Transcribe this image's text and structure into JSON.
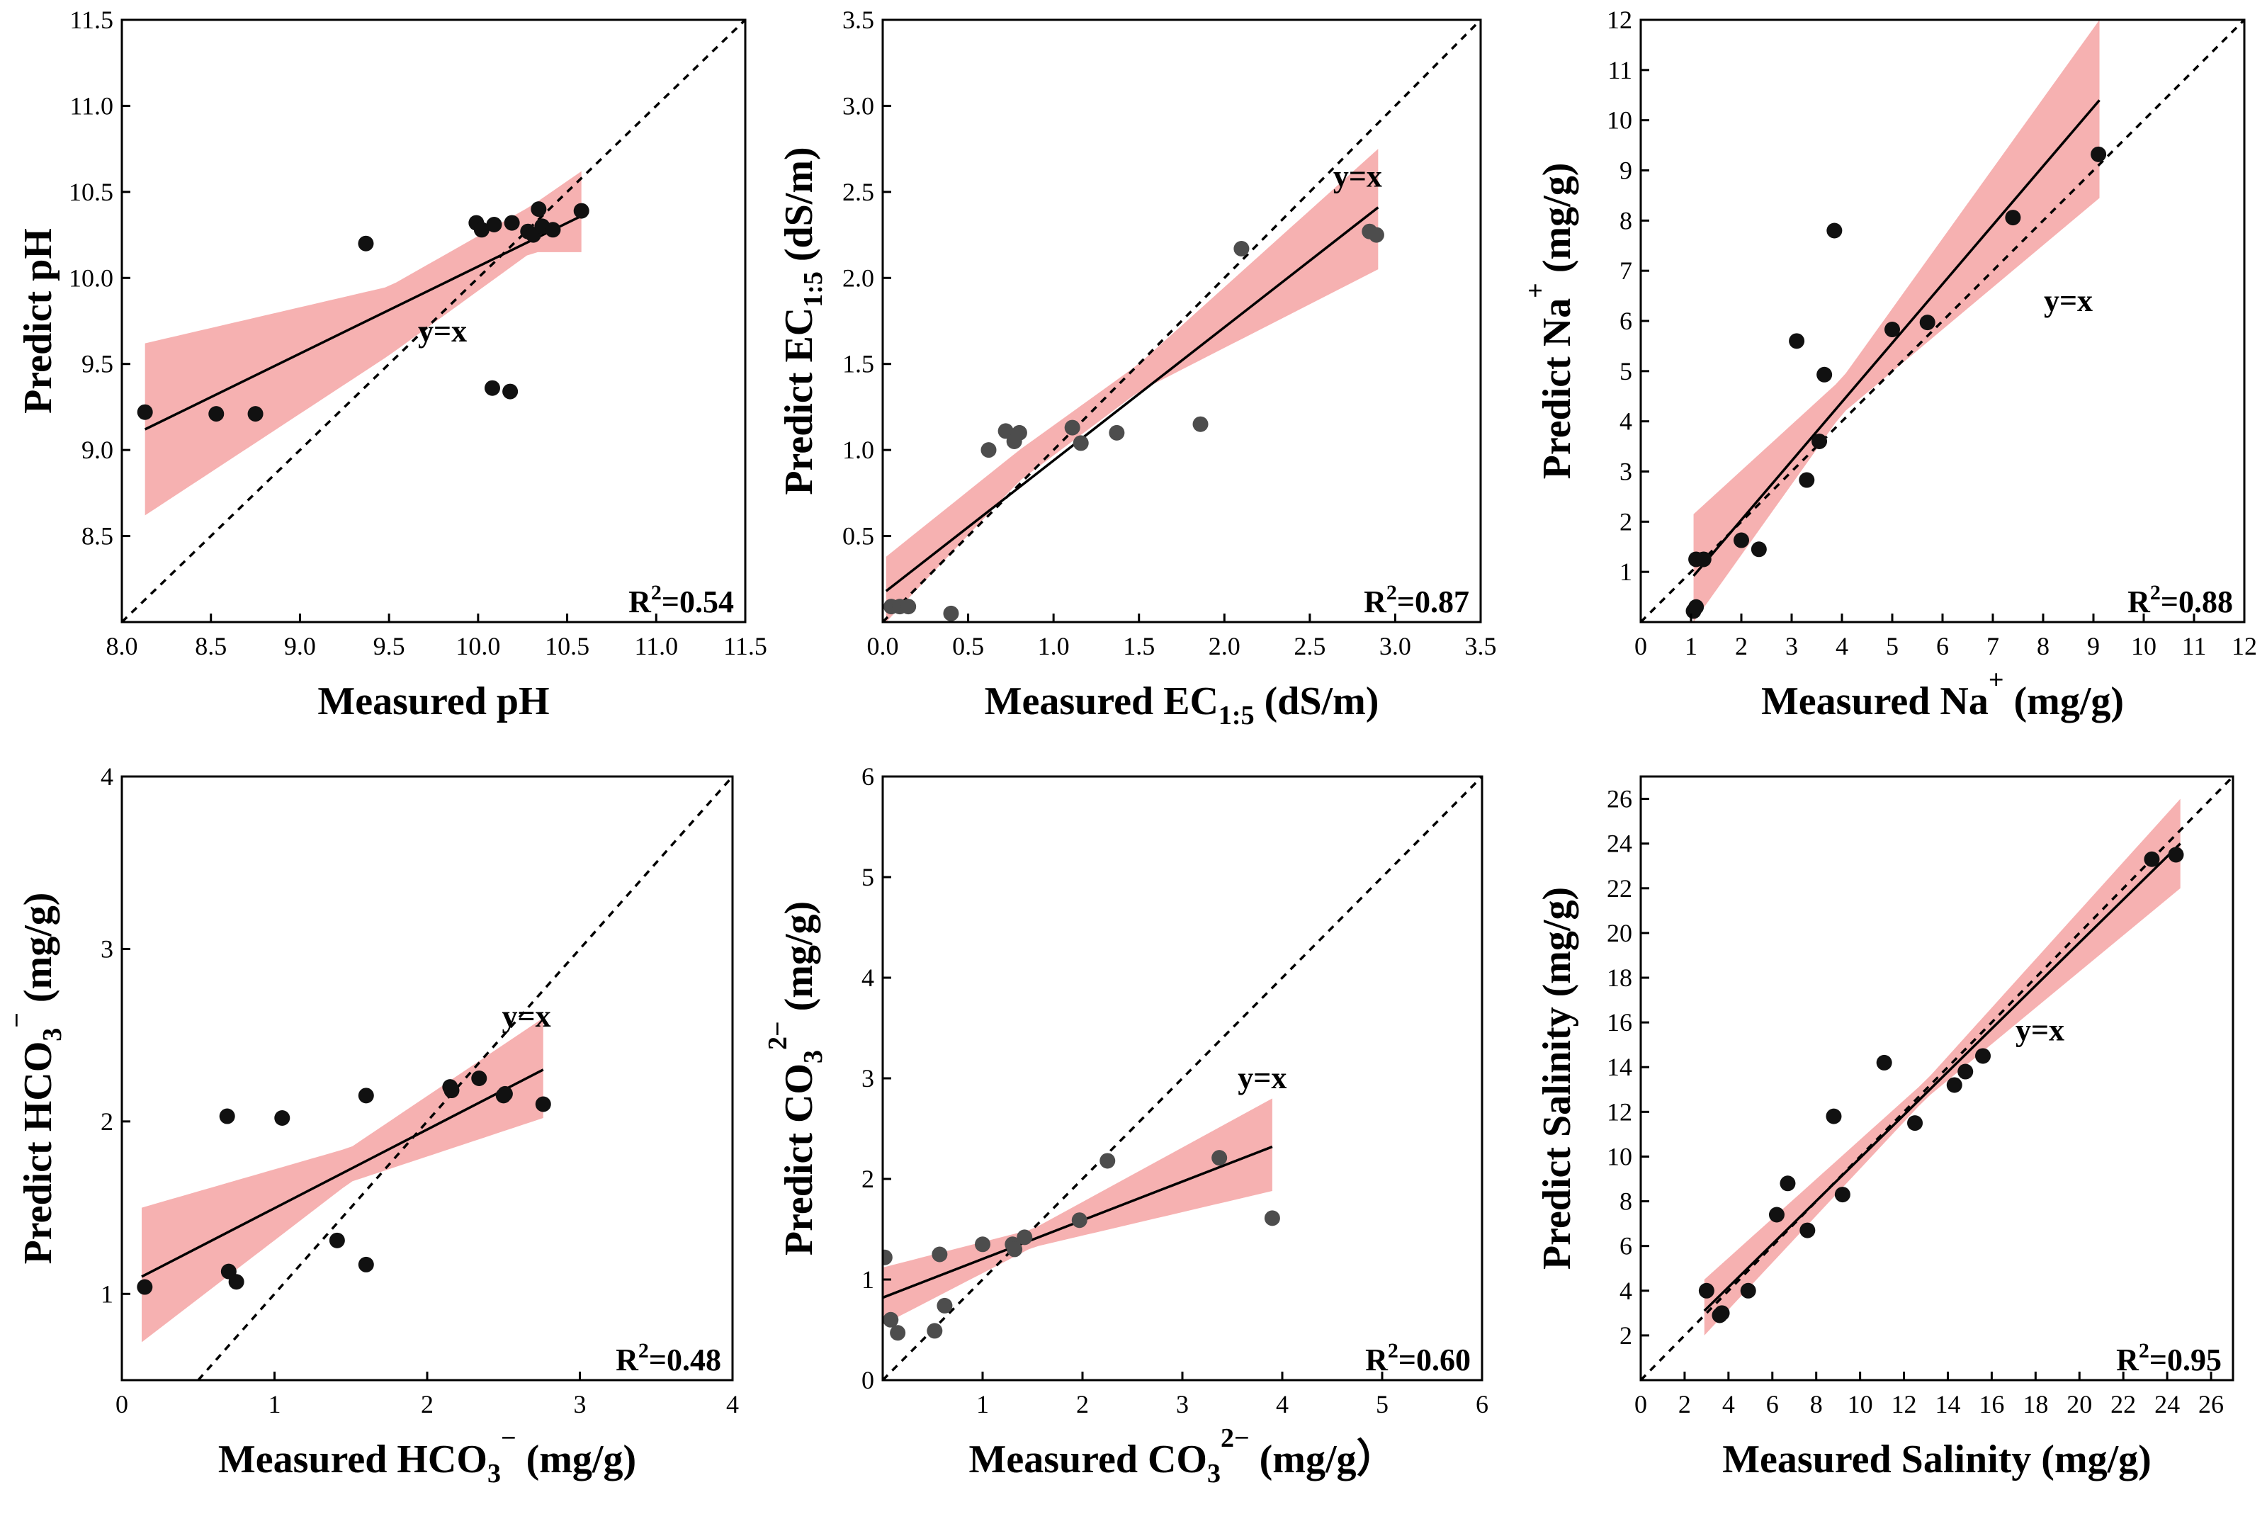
{
  "chart_data": [
    {
      "id": "ph",
      "type": "scatter",
      "xlabel": {
        "pre": "Measured pH"
      },
      "ylabel": {
        "pre": "Predict pH"
      },
      "xlim": [
        8.0,
        11.5
      ],
      "ylim": [
        8.0,
        11.5
      ],
      "xticks": [
        8.0,
        8.5,
        9.0,
        9.5,
        10.0,
        10.5,
        11.0,
        11.5
      ],
      "xtick_labels": [
        "8.0",
        "8.5",
        "9.0",
        "9.5",
        "10.0",
        "10.5",
        "11.0",
        "11.5"
      ],
      "yticks": [
        8.5,
        9.0,
        9.5,
        10.0,
        10.5,
        11.0,
        11.5
      ],
      "ytick_labels": [
        "8.5",
        "9.0",
        "9.5",
        "10.0",
        "10.5",
        "11.0",
        "11.5"
      ],
      "point_color": "#111111",
      "points": [
        [
          8.13,
          9.22
        ],
        [
          8.53,
          9.21
        ],
        [
          8.75,
          9.21
        ],
        [
          9.37,
          10.2
        ],
        [
          9.99,
          10.32
        ],
        [
          10.02,
          10.28
        ],
        [
          10.09,
          10.31
        ],
        [
          10.19,
          10.32
        ],
        [
          10.28,
          10.27
        ],
        [
          10.31,
          10.25
        ],
        [
          10.34,
          10.4
        ],
        [
          10.36,
          10.3
        ],
        [
          10.42,
          10.28
        ],
        [
          10.58,
          10.39
        ],
        [
          10.08,
          9.36
        ],
        [
          10.18,
          9.34
        ]
      ],
      "fit_line": {
        "x": [
          8.13,
          10.58
        ],
        "y": [
          9.12,
          10.36
        ]
      },
      "confidence_band": {
        "x": [
          8.13,
          9.5,
          10.3,
          10.58
        ],
        "lower": [
          8.62,
          9.55,
          10.15,
          10.15
        ],
        "upper": [
          9.62,
          9.95,
          10.42,
          10.62
        ]
      },
      "identity_label": "y=x",
      "identity_label_at": [
        9.8,
        9.63
      ],
      "r2_label": {
        "pre": "R",
        "sup": "2",
        "post": "=0.54"
      }
    },
    {
      "id": "ec",
      "type": "scatter",
      "xlabel": {
        "pre": "Measured EC",
        "sub": "1:5",
        "post": " (dS/m)"
      },
      "ylabel": {
        "pre": "Predict EC",
        "sub": "1:5",
        "post": " (dS/m)"
      },
      "xlim": [
        0,
        3.5
      ],
      "ylim": [
        0,
        3.5
      ],
      "xticks": [
        0,
        0.5,
        1.0,
        1.5,
        2.0,
        2.5,
        3.0,
        3.5
      ],
      "xtick_labels": [
        "0.0",
        "0.5",
        "1.0",
        "1.5",
        "2.0",
        "2.5",
        "3.0",
        "3.5"
      ],
      "yticks": [
        0.5,
        1.0,
        1.5,
        2.0,
        2.5,
        3.0,
        3.5
      ],
      "ytick_labels": [
        "0.5",
        "1.0",
        "1.5",
        "2.0",
        "2.5",
        "3.0",
        "3.5"
      ],
      "point_color": "#4d4d4d",
      "points": [
        [
          0.05,
          0.09
        ],
        [
          0.1,
          0.09
        ],
        [
          0.15,
          0.09
        ],
        [
          0.4,
          0.05
        ],
        [
          0.62,
          1.0
        ],
        [
          0.72,
          1.11
        ],
        [
          0.77,
          1.05
        ],
        [
          0.8,
          1.1
        ],
        [
          1.11,
          1.13
        ],
        [
          1.16,
          1.04
        ],
        [
          1.37,
          1.1
        ],
        [
          1.86,
          1.15
        ],
        [
          2.1,
          2.17
        ],
        [
          2.85,
          2.27
        ],
        [
          2.89,
          2.25
        ]
      ],
      "fit_line": {
        "x": [
          0.02,
          2.9
        ],
        "y": [
          0.18,
          2.41
        ]
      },
      "confidence_band": {
        "x": [
          0.02,
          0.8,
          1.5,
          2.9
        ],
        "lower": [
          0.0,
          0.82,
          1.34,
          2.05
        ],
        "upper": [
          0.38,
          1.0,
          1.5,
          2.75
        ]
      },
      "identity_label": "y=x",
      "identity_label_at": [
        2.78,
        2.53
      ],
      "r2_label": {
        "pre": "R",
        "sup": "2",
        "post": "=0.87"
      }
    },
    {
      "id": "na",
      "type": "scatter",
      "xlabel": {
        "pre": "Measured Na",
        "sup": "+",
        "post": " (mg/g)"
      },
      "ylabel": {
        "pre": "Predict Na",
        "sup": "+",
        "post": " (mg/g)"
      },
      "xlim": [
        0,
        12
      ],
      "ylim": [
        0,
        12
      ],
      "xticks": [
        0,
        1,
        2,
        3,
        4,
        5,
        6,
        7,
        8,
        9,
        10,
        11,
        12
      ],
      "xtick_labels": [
        "0",
        "1",
        "2",
        "3",
        "4",
        "5",
        "6",
        "7",
        "8",
        "9",
        "10",
        "11",
        "12"
      ],
      "yticks": [
        1,
        2,
        3,
        4,
        5,
        6,
        7,
        8,
        9,
        10,
        11,
        12
      ],
      "ytick_labels": [
        "1",
        "2",
        "3",
        "4",
        "5",
        "6",
        "7",
        "8",
        "9",
        "10",
        "11",
        "12"
      ],
      "point_color": "#111111",
      "points": [
        [
          1.05,
          0.22
        ],
        [
          1.1,
          0.3
        ],
        [
          1.1,
          1.25
        ],
        [
          1.25,
          1.25
        ],
        [
          2.0,
          1.63
        ],
        [
          2.35,
          1.45
        ],
        [
          3.1,
          5.6
        ],
        [
          3.3,
          2.83
        ],
        [
          3.55,
          3.6
        ],
        [
          3.65,
          4.93
        ],
        [
          3.85,
          7.8
        ],
        [
          5.0,
          5.83
        ],
        [
          5.7,
          5.97
        ],
        [
          7.4,
          8.06
        ],
        [
          9.1,
          9.32
        ]
      ],
      "fit_line": {
        "x": [
          1.05,
          9.12
        ],
        "y": [
          0.92,
          10.4
        ]
      },
      "confidence_band": {
        "x": [
          1.05,
          4.0,
          9.12
        ],
        "lower": [
          0.0,
          4.15,
          8.45
        ],
        "upper": [
          2.15,
          4.85,
          12.0
        ]
      },
      "identity_label": "y=x",
      "identity_label_at": [
        8.5,
        6.2
      ],
      "r2_label": {
        "pre": "R",
        "sup": "2",
        "post": "=0.88"
      }
    },
    {
      "id": "hco3",
      "type": "scatter",
      "xlabel": {
        "pre": "Measured HCO",
        "sub": "3",
        "sup": "−",
        "post": " (mg/g)"
      },
      "ylabel": {
        "pre": "Predict HCO",
        "sub": "3",
        "sup": "−",
        "post": "  (mg/g)"
      },
      "xlim": [
        0,
        4
      ],
      "ylim": [
        0.5,
        4
      ],
      "xticks": [
        0,
        1,
        2,
        3,
        4
      ],
      "xtick_labels": [
        "0",
        "1",
        "2",
        "3",
        "4"
      ],
      "yticks": [
        1,
        2,
        3,
        4
      ],
      "ytick_labels": [
        "1",
        "2",
        "3",
        "4"
      ],
      "point_color": "#111111",
      "points": [
        [
          0.15,
          1.04
        ],
        [
          0.69,
          2.03
        ],
        [
          0.7,
          1.13
        ],
        [
          0.75,
          1.07
        ],
        [
          1.05,
          2.02
        ],
        [
          1.41,
          1.31
        ],
        [
          1.6,
          1.17
        ],
        [
          1.6,
          2.15
        ],
        [
          2.15,
          2.2
        ],
        [
          2.16,
          2.18
        ],
        [
          2.34,
          2.25
        ],
        [
          2.5,
          2.15
        ],
        [
          2.51,
          2.16
        ],
        [
          2.76,
          2.1
        ]
      ],
      "fit_line": {
        "x": [
          0.13,
          2.76
        ],
        "y": [
          1.1,
          2.3
        ]
      },
      "confidence_band": {
        "x": [
          0.13,
          1.5,
          2.76
        ],
        "lower": [
          0.72,
          1.65,
          2.02
        ],
        "upper": [
          1.5,
          1.85,
          2.6
        ]
      },
      "identity_label": "y=x",
      "identity_label_at": [
        2.65,
        2.55
      ],
      "r2_label": {
        "pre": "R",
        "sup": "2",
        "post": "=0.48"
      }
    },
    {
      "id": "co3",
      "type": "scatter",
      "xlabel": {
        "pre": "Measured CO",
        "sub": "3",
        "sup": "2−",
        "post": " (mg/g）"
      },
      "ylabel": {
        "pre": "Predict CO",
        "sub": "3",
        "sup": "2−",
        "post": "  (mg/g)"
      },
      "xlim": [
        0,
        6
      ],
      "ylim": [
        0,
        6
      ],
      "xticks": [
        1,
        2,
        3,
        4,
        5,
        6
      ],
      "xtick_labels": [
        "1",
        "2",
        "3",
        "4",
        "5",
        "6"
      ],
      "yticks": [
        0,
        1,
        2,
        3,
        4,
        5,
        6
      ],
      "ytick_labels": [
        "0",
        "1",
        "2",
        "3",
        "4",
        "5",
        "6"
      ],
      "point_color": "#4d4d4d",
      "points": [
        [
          0.02,
          1.22
        ],
        [
          0.08,
          0.6
        ],
        [
          0.15,
          0.47
        ],
        [
          0.52,
          0.49
        ],
        [
          0.57,
          1.25
        ],
        [
          0.62,
          0.74
        ],
        [
          1.0,
          1.35
        ],
        [
          1.3,
          1.35
        ],
        [
          1.32,
          1.3
        ],
        [
          1.42,
          1.42
        ],
        [
          1.97,
          1.59
        ],
        [
          2.25,
          2.18
        ],
        [
          3.37,
          2.21
        ],
        [
          3.9,
          1.61
        ]
      ],
      "fit_line": {
        "x": [
          0.0,
          3.9
        ],
        "y": [
          0.82,
          2.32
        ]
      },
      "confidence_band": {
        "x": [
          0.0,
          1.5,
          3.9
        ],
        "lower": [
          0.55,
          1.32,
          1.88
        ],
        "upper": [
          1.12,
          1.5,
          2.8
        ]
      },
      "identity_label": "y=x",
      "identity_label_at": [
        3.8,
        2.9
      ],
      "r2_label": {
        "pre": "R",
        "sup": "2",
        "post": "=0.60"
      }
    },
    {
      "id": "salinity",
      "type": "scatter",
      "xlabel": {
        "pre": "Measured Salinity (mg/g)"
      },
      "ylabel": {
        "pre": "Predict Salinity (mg/g)"
      },
      "xlim": [
        0,
        27
      ],
      "ylim": [
        0,
        27
      ],
      "xticks": [
        0,
        2,
        4,
        6,
        8,
        10,
        12,
        14,
        16,
        18,
        20,
        22,
        24,
        26
      ],
      "xtick_labels": [
        "0",
        "2",
        "4",
        "6",
        "8",
        "10",
        "12",
        "14",
        "16",
        "18",
        "20",
        "22",
        "24",
        "26"
      ],
      "yticks": [
        2,
        4,
        6,
        8,
        10,
        12,
        14,
        16,
        18,
        20,
        22,
        24,
        26
      ],
      "ytick_labels": [
        "2",
        "4",
        "6",
        "8",
        "10",
        "12",
        "14",
        "16",
        "18",
        "20",
        "22",
        "24",
        "26"
      ],
      "point_color": "#111111",
      "points": [
        [
          3.0,
          4.0
        ],
        [
          3.6,
          2.9
        ],
        [
          3.7,
          3.0
        ],
        [
          4.9,
          4.0
        ],
        [
          6.2,
          7.4
        ],
        [
          6.7,
          8.8
        ],
        [
          7.6,
          6.7
        ],
        [
          8.8,
          11.8
        ],
        [
          9.2,
          8.3
        ],
        [
          11.1,
          14.2
        ],
        [
          12.5,
          11.5
        ],
        [
          14.3,
          13.2
        ],
        [
          14.8,
          13.8
        ],
        [
          15.6,
          14.5
        ],
        [
          23.3,
          23.3
        ],
        [
          24.4,
          23.5
        ]
      ],
      "fit_line": {
        "x": [
          2.9,
          24.6
        ],
        "y": [
          3.1,
          24.0
        ]
      },
      "confidence_band": {
        "x": [
          2.9,
          13.0,
          24.6
        ],
        "lower": [
          2.0,
          12.6,
          22.0
        ],
        "upper": [
          4.5,
          13.4,
          26.0
        ]
      },
      "identity_label": "y=x",
      "identity_label_at": [
        18.2,
        15.2
      ],
      "r2_label": {
        "pre": "R",
        "sup": "2",
        "post": "=0.95"
      }
    }
  ]
}
